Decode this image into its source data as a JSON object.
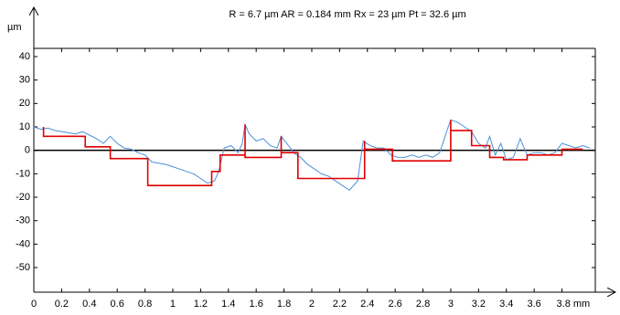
{
  "chart_data": {
    "type": "line",
    "title": "R = 6.7 µm  AR = 0.184 mm  Rx = 23 µm Pt = 32.6 µm",
    "y_label": "µm",
    "xlim": [
      0,
      4.04
    ],
    "ylim": [
      -60.5,
      43.5
    ],
    "xticks": [
      0,
      0.2,
      0.4,
      0.6,
      0.8,
      1,
      1.2,
      1.4,
      1.6,
      1.8,
      2,
      2.2,
      2.4,
      2.6,
      2.8,
      3,
      3.2,
      3.4,
      3.6,
      {
        "value": 3.8,
        "label": "3.8 mm"
      }
    ],
    "yticks": [
      40,
      30,
      20,
      10,
      0,
      -10,
      -20,
      -30,
      -40,
      -50
    ],
    "series": [
      {
        "color": "#4a90d9",
        "x": [
          0,
          0.05,
          0.1,
          0.15,
          0.2,
          0.25,
          0.3,
          0.35,
          0.4,
          0.45,
          0.5,
          0.55,
          0.6,
          0.65,
          0.7,
          0.75,
          0.8,
          0.85,
          0.9,
          0.95,
          1.0,
          1.05,
          1.1,
          1.15,
          1.2,
          1.25,
          1.3,
          1.33,
          1.37,
          1.42,
          1.47,
          1.5,
          1.52,
          1.55,
          1.6,
          1.65,
          1.7,
          1.75,
          1.78,
          1.82,
          1.87,
          1.92,
          1.97,
          2.02,
          2.07,
          2.12,
          2.17,
          2.22,
          2.27,
          2.3,
          2.33,
          2.37,
          2.42,
          2.47,
          2.52,
          2.57,
          2.62,
          2.67,
          2.72,
          2.77,
          2.82,
          2.87,
          2.92,
          2.97,
          3.0,
          3.05,
          3.1,
          3.15,
          3.2,
          3.25,
          3.28,
          3.32,
          3.36,
          3.4,
          3.45,
          3.5,
          3.55,
          3.6,
          3.65,
          3.7,
          3.75,
          3.8,
          3.85,
          3.9,
          3.95,
          4.0
        ],
        "values": [
          10,
          9,
          9.5,
          8.5,
          8,
          7.5,
          7,
          8,
          6.5,
          5,
          3,
          6,
          3,
          1,
          0.5,
          -1,
          -2,
          -5,
          -5.5,
          -6,
          -7,
          -8,
          -9,
          -10,
          -12,
          -14,
          -13,
          -9,
          1,
          2,
          -1,
          3,
          11,
          7,
          4,
          5,
          2,
          1,
          6,
          3,
          -1,
          -3,
          -6,
          -8,
          -10,
          -11,
          -13,
          -15,
          -17,
          -15,
          -13,
          4,
          2,
          1,
          1,
          -2,
          -3,
          -3,
          -2,
          -3,
          -2,
          -3,
          -1,
          8,
          13,
          12,
          10,
          8,
          3,
          1,
          6,
          -2,
          3,
          -4,
          -3,
          5,
          -2,
          -1,
          -1,
          -2,
          -1,
          3,
          2,
          1,
          2,
          1
        ]
      },
      {
        "color": "#e00000",
        "x": [
          0.07,
          0.07,
          0.37,
          0.37,
          0.55,
          0.55,
          0.82,
          0.82,
          1.28,
          1.28,
          1.34,
          1.34,
          1.52,
          1.52,
          1.52,
          1.78,
          1.78,
          1.78,
          1.9,
          1.9,
          2.38,
          2.38,
          2.38,
          2.58,
          2.58,
          3.0,
          3.0,
          3.0,
          3.15,
          3.15,
          3.28,
          3.28,
          3.38,
          3.38,
          3.55,
          3.55,
          3.8,
          3.8,
          3.95
        ],
        "values": [
          10,
          6,
          6,
          1.5,
          1.5,
          -3.5,
          -3.5,
          -15,
          -15,
          -9,
          -9,
          -2,
          -2,
          11,
          -3,
          -3,
          6,
          -1,
          -1,
          -12,
          -12,
          4,
          0.5,
          0.5,
          -4.5,
          -4.5,
          13,
          8.5,
          8.5,
          2,
          2,
          -3,
          -3,
          -4,
          -4,
          -2,
          -2,
          0.5,
          0.5
        ]
      }
    ]
  }
}
